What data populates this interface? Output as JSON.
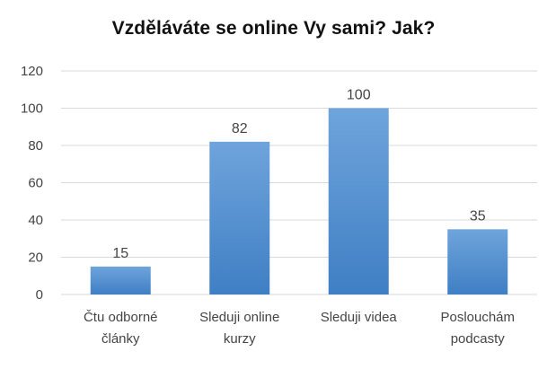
{
  "chart_data": {
    "type": "bar",
    "title": "Vzděláváte se online Vy sami? Jak?",
    "categories": [
      [
        "Čtu odborné",
        "články"
      ],
      [
        "Sleduji online",
        "kurzy"
      ],
      [
        "Sleduji videa"
      ],
      [
        "Poslouchám",
        "podcasty"
      ]
    ],
    "values": [
      15,
      82,
      100,
      35
    ],
    "data_labels": [
      "15",
      "82",
      "100",
      "35"
    ],
    "y_ticks": [
      0,
      20,
      40,
      60,
      80,
      100,
      120
    ],
    "ylim": [
      0,
      120
    ],
    "xlabel": "",
    "ylabel": "",
    "grid": true,
    "legend": "none",
    "colors": {
      "bar_top": "#6fa4dc",
      "bar_bottom": "#3f7fc4",
      "grid": "#d9d9d9",
      "text": "#444444"
    }
  }
}
